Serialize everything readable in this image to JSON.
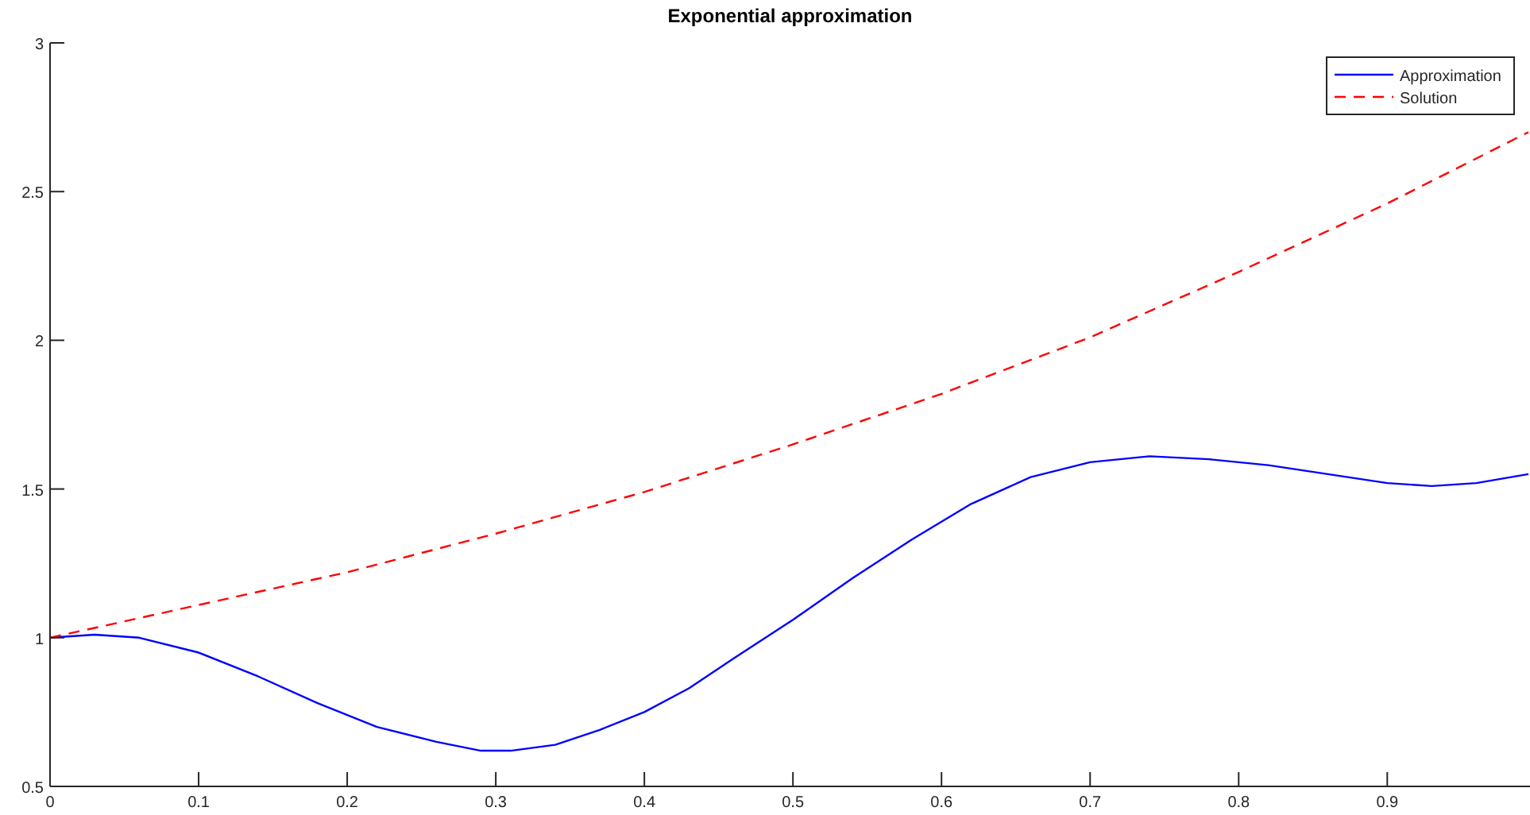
{
  "chart_data": {
    "type": "line",
    "title": "Exponential approximation",
    "xlim": [
      0,
      0.995
    ],
    "ylim": [
      0.5,
      3
    ],
    "xticks": [
      0,
      0.1,
      0.2,
      0.3,
      0.4,
      0.5,
      0.6,
      0.7,
      0.8,
      0.9
    ],
    "yticks": [
      0.5,
      1,
      1.5,
      2,
      2.5,
      3
    ],
    "grid": false,
    "legend": "top right",
    "marker": "none",
    "series": [
      {
        "name": "Approximation",
        "color": "#0000ff",
        "line_style": "solid",
        "x": [
          0,
          0.03,
          0.06,
          0.1,
          0.14,
          0.18,
          0.22,
          0.26,
          0.29,
          0.31,
          0.34,
          0.37,
          0.4,
          0.43,
          0.46,
          0.5,
          0.54,
          0.58,
          0.62,
          0.66,
          0.7,
          0.74,
          0.78,
          0.82,
          0.86,
          0.9,
          0.93,
          0.96,
          0.995
        ],
        "values": [
          1,
          1.01,
          1,
          0.95,
          0.87,
          0.78,
          0.7,
          0.65,
          0.62,
          0.62,
          0.64,
          0.69,
          0.75,
          0.83,
          0.93,
          1.06,
          1.2,
          1.33,
          1.45,
          1.54,
          1.59,
          1.61,
          1.6,
          1.58,
          1.55,
          1.52,
          1.51,
          1.52,
          1.55
        ]
      },
      {
        "name": "Solution",
        "color": "#ff0000",
        "line_style": "dashed",
        "x": [
          0,
          0.1,
          0.2,
          0.3,
          0.4,
          0.5,
          0.6,
          0.7,
          0.8,
          0.9,
          0.995
        ],
        "values": [
          1,
          1.11,
          1.22,
          1.35,
          1.49,
          1.65,
          1.82,
          2.01,
          2.23,
          2.46,
          2.7
        ]
      }
    ]
  }
}
